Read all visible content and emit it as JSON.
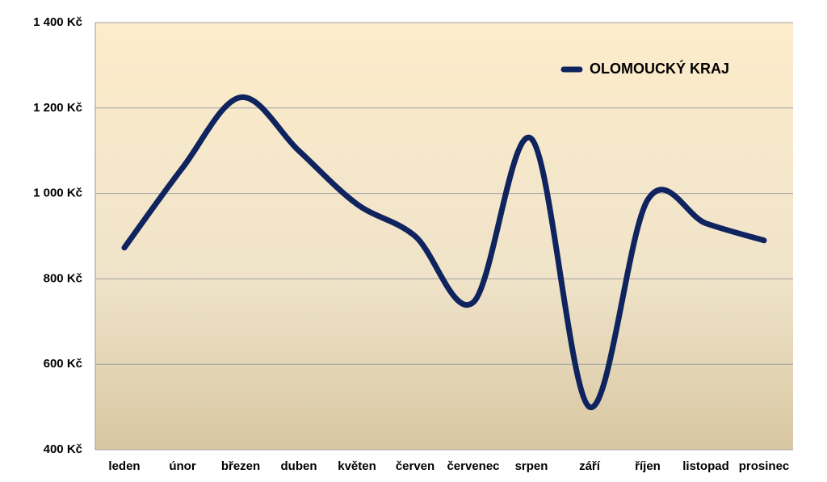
{
  "chart_data": {
    "type": "line",
    "categories": [
      "leden",
      "únor",
      "březen",
      "duben",
      "květen",
      "červen",
      "červenec",
      "srpen",
      "září",
      "říjen",
      "listopad",
      "prosinec"
    ],
    "series": [
      {
        "name": "OLOMOUCKÝ KRAJ",
        "color": "#0f235e",
        "values": [
          873,
          1060,
          1225,
          1100,
          975,
          900,
          745,
          1128,
          500,
          985,
          930,
          890
        ]
      }
    ],
    "ylim": [
      400,
      1400
    ],
    "yticks": [
      {
        "value": 400,
        "label": "400 Kč"
      },
      {
        "value": 600,
        "label": "600 Kč"
      },
      {
        "value": 800,
        "label": "800 Kč"
      },
      {
        "value": 1000,
        "label": "1 000 Kč"
      },
      {
        "value": 1200,
        "label": "1 200 Kč"
      },
      {
        "value": 1400,
        "label": "1 400 Kč"
      }
    ],
    "grid": true,
    "smooth": true,
    "legend": "upper right"
  }
}
